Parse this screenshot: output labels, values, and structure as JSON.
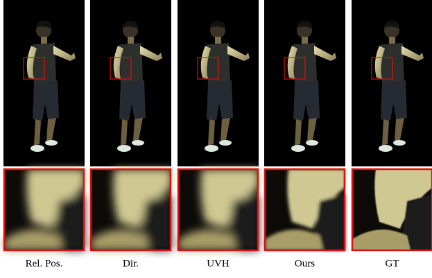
{
  "captions": [
    "Rel. Pos.",
    "Dir.",
    "UVH",
    "Ours",
    "GT"
  ]
}
